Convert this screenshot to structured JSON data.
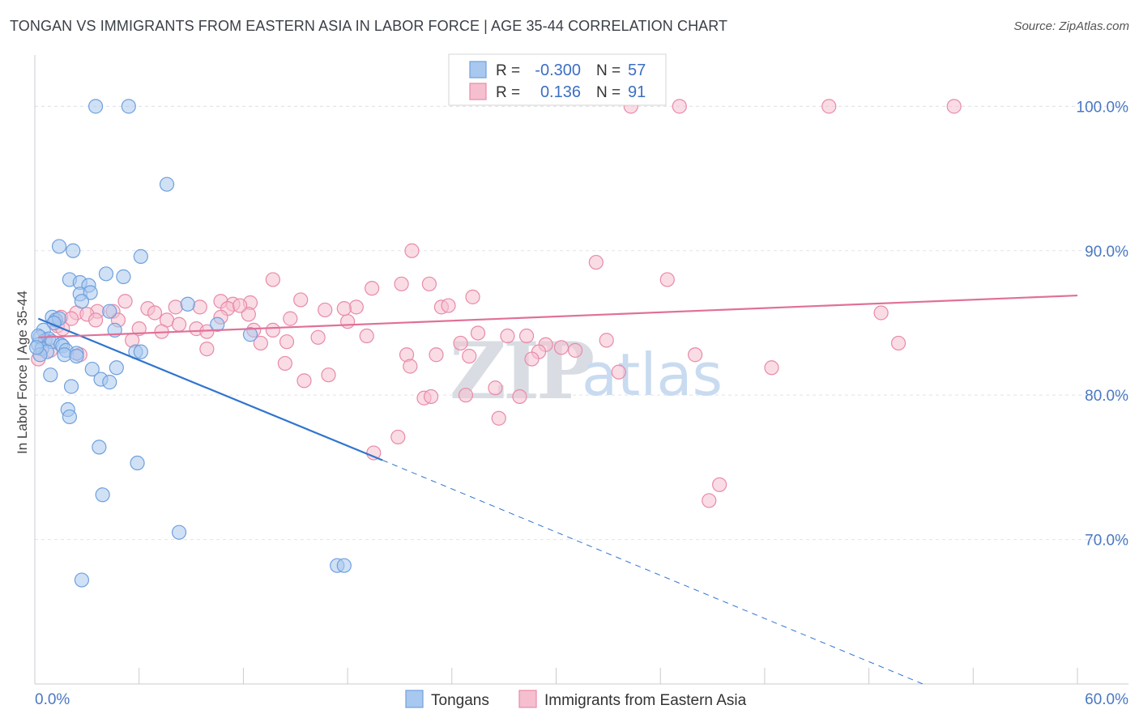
{
  "title": "TONGAN VS IMMIGRANTS FROM EASTERN ASIA IN LABOR FORCE | AGE 35-44 CORRELATION CHART",
  "source": "Source: ZipAtlas.com",
  "watermark": {
    "zip": "ZIP",
    "atlas": "atlas"
  },
  "colors": {
    "blue": "#6fa0dd",
    "blue_fill": "#a9c8ef",
    "blue_line": "#2f74cf",
    "pink": "#e88aa8",
    "pink_fill": "#f5bfd0",
    "pink_line": "#e07098"
  },
  "legend": {
    "rows": [
      {
        "r_label": "R =",
        "r_value": "-0.300",
        "n_label": "N =",
        "n_value": "57"
      },
      {
        "r_label": "R =",
        "r_value": "0.136",
        "n_label": "N =",
        "n_value": "91"
      }
    ]
  },
  "bottom_legend": [
    "Tongans",
    "Immigrants from Eastern Asia"
  ],
  "chart_data": {
    "type": "scatter",
    "title": "TONGAN VS IMMIGRANTS FROM EASTERN ASIA IN LABOR FORCE | AGE 35-44 CORRELATION CHART",
    "xlabel": "",
    "ylabel": "In Labor Force | Age 35-44",
    "xlim": [
      0,
      60
    ],
    "ylim": [
      60,
      104
    ],
    "x_tick_labels": [
      "0.0%",
      "60.0%"
    ],
    "y_ticks": [
      70,
      80,
      90,
      100
    ],
    "y_tick_labels": [
      "70.0%",
      "80.0%",
      "90.0%",
      "100.0%"
    ],
    "grid": true,
    "series": [
      {
        "name": "Tongans",
        "r": -0.3,
        "n": 57,
        "trend": {
          "x0": 0.2,
          "y0": 85.3,
          "x1": 20.0,
          "y1": 75.5,
          "dash_to_x": 51.3,
          "dash_to_y": 59.9
        },
        "points": [
          [
            3.5,
            100
          ],
          [
            5.4,
            100
          ],
          [
            7.6,
            94.6
          ],
          [
            1.4,
            90.3
          ],
          [
            2.2,
            90.0
          ],
          [
            6.1,
            89.6
          ],
          [
            4.1,
            88.4
          ],
          [
            5.1,
            88.2
          ],
          [
            2.0,
            88.0
          ],
          [
            2.6,
            87.8
          ],
          [
            3.1,
            87.6
          ],
          [
            2.6,
            87.0
          ],
          [
            3.2,
            87.1
          ],
          [
            2.7,
            86.5
          ],
          [
            8.8,
            86.3
          ],
          [
            4.3,
            85.8
          ],
          [
            1.0,
            85.4
          ],
          [
            1.2,
            85.2
          ],
          [
            1.4,
            85.3
          ],
          [
            1.1,
            85.0
          ],
          [
            10.5,
            84.9
          ],
          [
            0.5,
            84.5
          ],
          [
            4.6,
            84.5
          ],
          [
            12.4,
            84.2
          ],
          [
            0.3,
            84.0
          ],
          [
            0.6,
            83.8
          ],
          [
            0.8,
            83.9
          ],
          [
            1.0,
            83.7
          ],
          [
            0.2,
            83.5
          ],
          [
            1.5,
            83.5
          ],
          [
            1.6,
            83.4
          ],
          [
            0.4,
            83.2
          ],
          [
            0.7,
            83.0
          ],
          [
            1.8,
            83.1
          ],
          [
            2.4,
            82.9
          ],
          [
            5.8,
            83.0
          ],
          [
            6.1,
            83.0
          ],
          [
            0.3,
            82.8
          ],
          [
            1.7,
            82.8
          ],
          [
            2.4,
            82.7
          ],
          [
            3.3,
            81.8
          ],
          [
            4.7,
            81.9
          ],
          [
            0.9,
            81.4
          ],
          [
            3.8,
            81.1
          ],
          [
            4.3,
            80.9
          ],
          [
            2.1,
            80.6
          ],
          [
            1.9,
            79.0
          ],
          [
            2.0,
            78.5
          ],
          [
            3.7,
            76.4
          ],
          [
            5.9,
            75.3
          ],
          [
            3.9,
            73.1
          ],
          [
            8.3,
            70.5
          ],
          [
            17.4,
            68.2
          ],
          [
            17.8,
            68.2
          ],
          [
            2.7,
            67.2
          ],
          [
            0.2,
            84.1
          ],
          [
            0.1,
            83.3
          ]
        ]
      },
      {
        "name": "Immigrants from Eastern Asia",
        "r": 0.136,
        "n": 91,
        "trend": {
          "x0": 0.2,
          "y0": 84.0,
          "x1": 60.0,
          "y1": 86.9
        },
        "points": [
          [
            34.3,
            100
          ],
          [
            37.1,
            100
          ],
          [
            45.7,
            100
          ],
          [
            52.9,
            100
          ],
          [
            21.7,
            90.0
          ],
          [
            32.3,
            89.2
          ],
          [
            13.7,
            88.0
          ],
          [
            36.4,
            88.0
          ],
          [
            19.4,
            87.4
          ],
          [
            21.1,
            87.7
          ],
          [
            22.7,
            87.7
          ],
          [
            25.2,
            86.8
          ],
          [
            15.3,
            86.6
          ],
          [
            5.2,
            86.5
          ],
          [
            10.7,
            86.5
          ],
          [
            11.4,
            86.3
          ],
          [
            12.4,
            86.4
          ],
          [
            8.1,
            86.1
          ],
          [
            9.5,
            86.1
          ],
          [
            3.6,
            85.8
          ],
          [
            6.5,
            86.0
          ],
          [
            11.1,
            86.0
          ],
          [
            16.7,
            85.9
          ],
          [
            18.5,
            86.1
          ],
          [
            23.4,
            86.1
          ],
          [
            23.8,
            86.2
          ],
          [
            2.4,
            85.7
          ],
          [
            3.0,
            85.6
          ],
          [
            4.5,
            85.8
          ],
          [
            6.9,
            85.7
          ],
          [
            10.7,
            85.4
          ],
          [
            1.5,
            85.4
          ],
          [
            2.1,
            85.3
          ],
          [
            3.5,
            85.2
          ],
          [
            4.8,
            85.2
          ],
          [
            7.6,
            85.2
          ],
          [
            18.0,
            85.1
          ],
          [
            1.3,
            84.8
          ],
          [
            8.3,
            84.9
          ],
          [
            9.3,
            84.6
          ],
          [
            13.7,
            84.5
          ],
          [
            6.0,
            84.6
          ],
          [
            7.3,
            84.4
          ],
          [
            9.9,
            84.4
          ],
          [
            12.6,
            84.5
          ],
          [
            25.5,
            84.3
          ],
          [
            27.2,
            84.1
          ],
          [
            28.3,
            84.1
          ],
          [
            19.1,
            84.1
          ],
          [
            16.3,
            84.0
          ],
          [
            32.9,
            83.8
          ],
          [
            5.6,
            83.8
          ],
          [
            13.0,
            83.6
          ],
          [
            14.5,
            83.7
          ],
          [
            24.5,
            83.6
          ],
          [
            29.4,
            83.5
          ],
          [
            30.3,
            83.3
          ],
          [
            31.1,
            83.1
          ],
          [
            29.0,
            83.0
          ],
          [
            38.0,
            82.8
          ],
          [
            9.9,
            83.2
          ],
          [
            21.4,
            82.8
          ],
          [
            23.1,
            82.8
          ],
          [
            25.0,
            82.7
          ],
          [
            28.6,
            82.5
          ],
          [
            14.4,
            82.2
          ],
          [
            21.6,
            82.0
          ],
          [
            42.4,
            81.9
          ],
          [
            48.7,
            85.7
          ],
          [
            49.7,
            83.6
          ],
          [
            33.6,
            81.6
          ],
          [
            16.9,
            81.4
          ],
          [
            15.5,
            81.0
          ],
          [
            26.5,
            80.5
          ],
          [
            24.8,
            80.0
          ],
          [
            27.9,
            79.9
          ],
          [
            22.4,
            79.8
          ],
          [
            22.8,
            79.9
          ],
          [
            26.7,
            78.4
          ],
          [
            20.9,
            77.1
          ],
          [
            19.5,
            76.0
          ],
          [
            39.4,
            73.8
          ],
          [
            38.8,
            72.7
          ],
          [
            0.2,
            82.5
          ],
          [
            2.6,
            82.8
          ],
          [
            0.9,
            83.1
          ],
          [
            1.6,
            84.6
          ],
          [
            17.8,
            86.0
          ],
          [
            12.3,
            85.6
          ],
          [
            14.7,
            85.3
          ],
          [
            11.8,
            86.2
          ]
        ]
      }
    ]
  }
}
